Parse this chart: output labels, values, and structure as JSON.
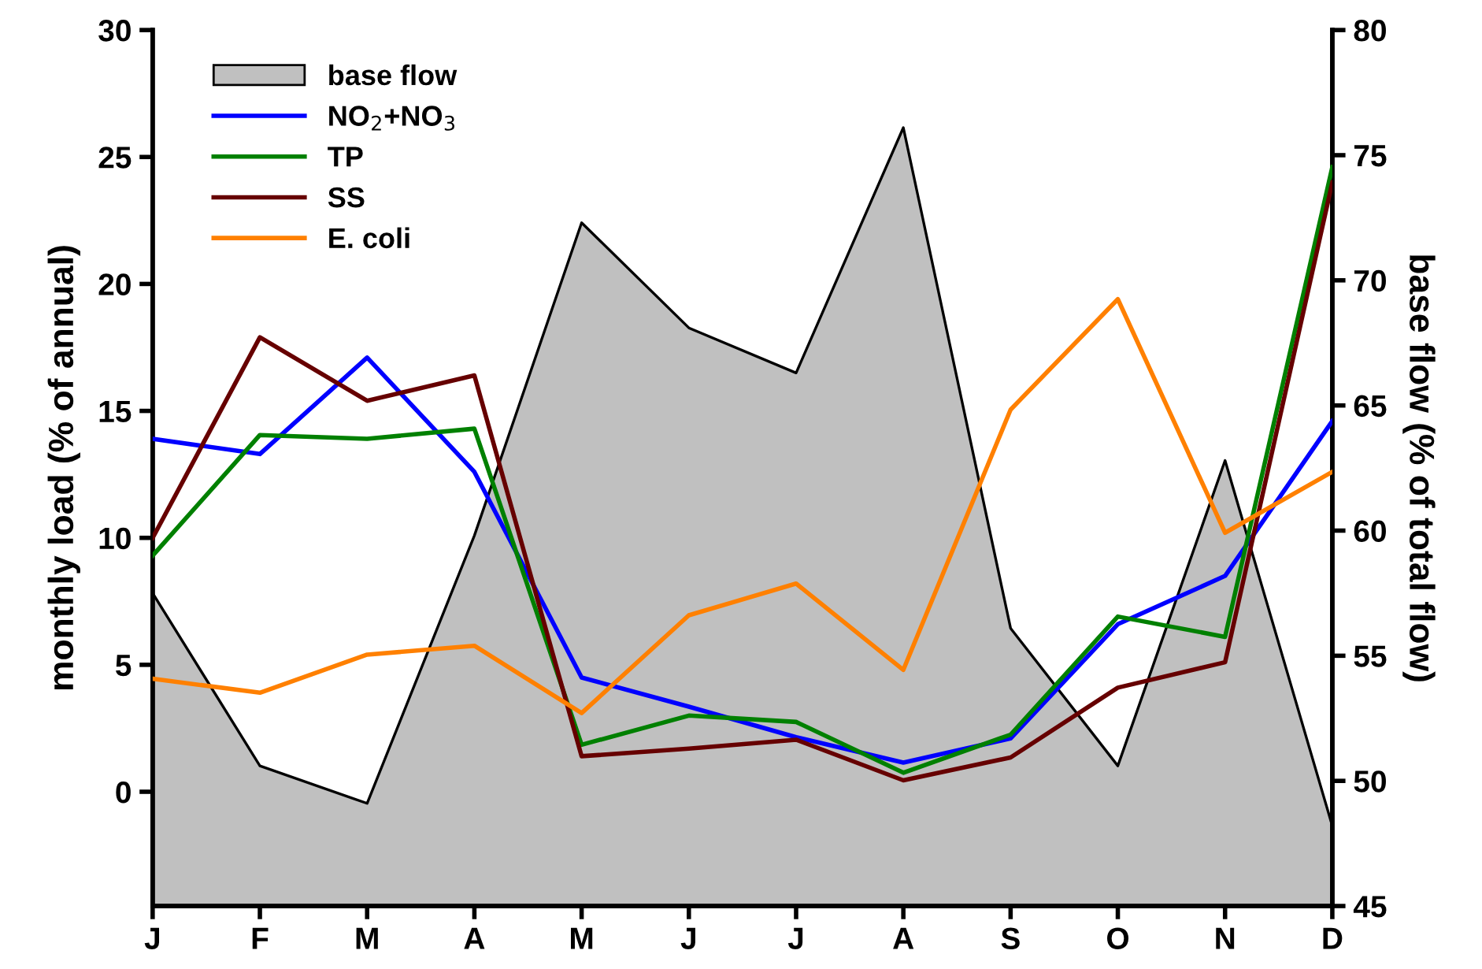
{
  "chart_data": {
    "type": "line",
    "categories": [
      "J",
      "F",
      "M",
      "A",
      "M",
      "J",
      "J",
      "A",
      "S",
      "O",
      "N",
      "D"
    ],
    "ylabel": "monthly load (% of annual)",
    "y2label": "base flow (% of total flow)",
    "ylim": [
      -4.5,
      30
    ],
    "yticks": [
      0,
      5,
      10,
      15,
      20,
      25,
      30
    ],
    "y2lim": [
      45,
      80
    ],
    "y2ticks": [
      45,
      50,
      55,
      60,
      65,
      70,
      75,
      80
    ],
    "grid": false,
    "legend": "top left",
    "marker": "none",
    "line_style": "solid",
    "series": [
      {
        "name": "base flow",
        "type": "area",
        "axis": "y2",
        "color": "#c0c0c0",
        "values": [
          57.5,
          50.6,
          49.1,
          59.8,
          72.3,
          68.1,
          66.3,
          76.1,
          56.1,
          50.6,
          62.8,
          48.2
        ]
      },
      {
        "name": "NO$_{2}$+NO$_{3}$",
        "color": "#0000ff",
        "values": [
          13.9,
          13.3,
          17.1,
          12.6,
          4.5,
          3.35,
          2.15,
          1.15,
          2.1,
          6.6,
          8.5,
          14.6
        ]
      },
      {
        "name": "TP",
        "color": "#008000",
        "values": [
          9.3,
          14.05,
          13.9,
          14.3,
          1.85,
          3.0,
          2.75,
          0.75,
          2.25,
          6.9,
          6.1,
          24.6
        ]
      },
      {
        "name": "SS",
        "color": "#660000",
        "values": [
          10.0,
          17.9,
          15.4,
          16.4,
          1.4,
          1.7,
          2.05,
          0.45,
          1.35,
          4.1,
          5.1,
          24.0
        ]
      },
      {
        "name": "E. coli",
        "color": "#ff8000",
        "values": [
          4.45,
          3.9,
          5.4,
          5.75,
          3.1,
          6.95,
          8.2,
          4.8,
          15.05,
          19.4,
          10.2,
          12.6
        ]
      }
    ]
  }
}
